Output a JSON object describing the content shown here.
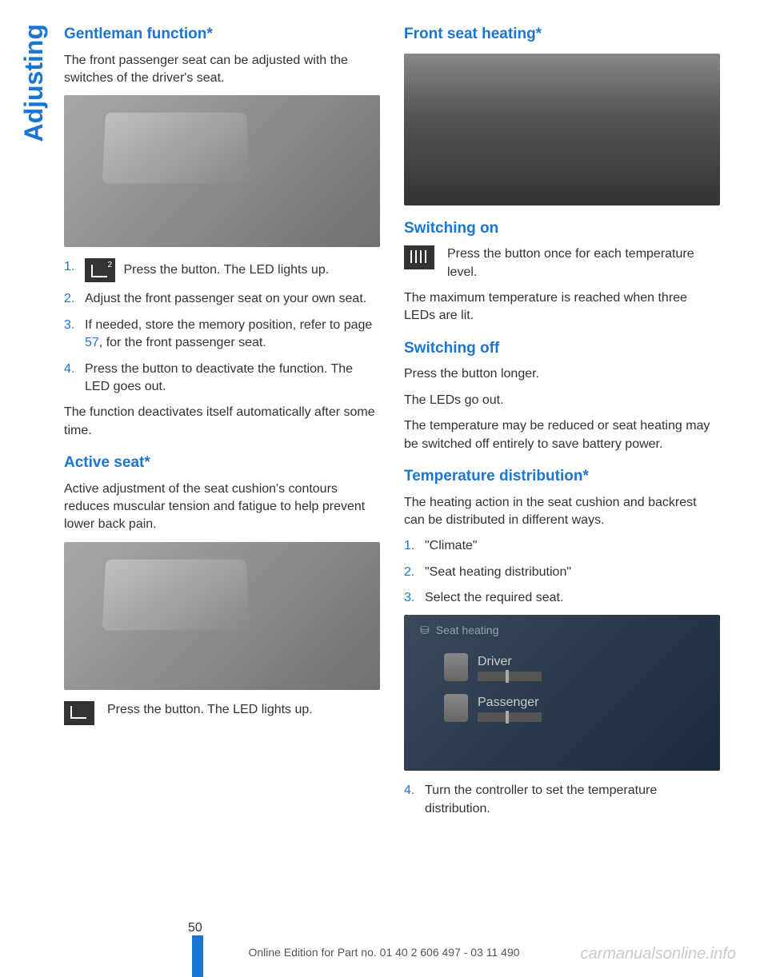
{
  "side_tab": "Adjusting",
  "left_col": {
    "h1": "Gentleman function*",
    "p1": "The front passenger seat can be adjusted with the switches of the driver's seat.",
    "list1": {
      "item1": "  Press the button. The LED lights up.",
      "item2": "Adjust the front passenger seat on your own seat.",
      "item3a": "If needed, store the memory position, refer to page ",
      "item3b": "57",
      "item3c": ", for the front passenger seat.",
      "item4": "Press the button to deactivate the function. The LED goes out."
    },
    "p2": "The function deactivates itself automatically after some time.",
    "h2": "Active seat*",
    "p3": "Active adjustment of the seat cushion's contours reduces muscular tension and fatigue to help prevent lower back pain.",
    "icon_text": "Press the button. The LED lights up."
  },
  "right_col": {
    "h1": "Front seat heating*",
    "h2": "Switching on",
    "icon_text1": "Press the button once for each temperature level.",
    "p1": "The maximum temperature is reached when three LEDs are lit.",
    "h3": "Switching off",
    "p2": "Press the button longer.",
    "p3": "The LEDs go out.",
    "p4": "The temperature may be reduced or seat heating may be switched off entirely to save battery power.",
    "h4": "Temperature distribution*",
    "p5": "The heating action in the seat cushion and backrest can be distributed in different ways.",
    "list1": {
      "item1": "\"Climate\"",
      "item2": "\"Seat heating distribution\"",
      "item3": "Select the required seat."
    },
    "list2": {
      "item4": "Turn the controller to set the temperature distribution."
    },
    "screen": {
      "title": "Seat heating",
      "row1": "Driver",
      "row2": "Passenger"
    }
  },
  "page_number": "50",
  "footer": "Online Edition for Part no. 01 40 2 606 497 - 03 11 490",
  "watermark": "carmanualsonline.info"
}
